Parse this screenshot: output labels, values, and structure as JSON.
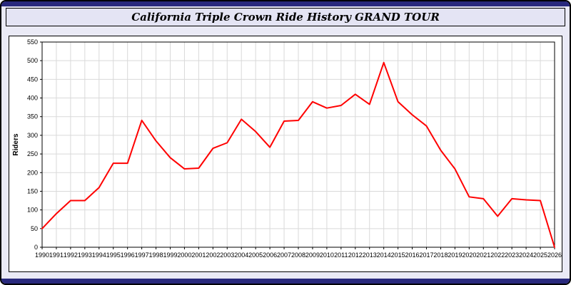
{
  "title": "California Triple Crown Ride History GRAND TOUR",
  "colors": {
    "navy_bar": "#29297d",
    "page_background": "#eaeaf6",
    "title_background": "#e4e4f4",
    "plot_background": "#ffffff",
    "grid": "#d9d9d9",
    "line": "#ff0000"
  },
  "chart_data": {
    "type": "line",
    "title": "California Triple Crown Ride History GRAND TOUR",
    "xlabel": "",
    "ylabel": "Riders",
    "ylim": [
      0,
      550
    ],
    "ytick_step": 50,
    "yticks": [
      0,
      50,
      100,
      150,
      200,
      250,
      300,
      350,
      400,
      450,
      500,
      550
    ],
    "grid": true,
    "legend": "none",
    "line_color": "#ff0000",
    "years": [
      1990,
      1991,
      1992,
      1993,
      1994,
      1995,
      1996,
      1997,
      1998,
      1999,
      2000,
      2001,
      2002,
      2003,
      2004,
      2005,
      2006,
      2007,
      2008,
      2009,
      2010,
      2011,
      2012,
      2013,
      2014,
      2015,
      2016,
      2017,
      2018,
      2019,
      2020,
      2021,
      2022,
      2023,
      2024,
      2025,
      2026
    ],
    "series": [
      {
        "name": "Riders",
        "values": [
          50,
          90,
          125,
          125,
          160,
          225,
          225,
          340,
          285,
          240,
          210,
          212,
          265,
          280,
          343,
          310,
          268,
          338,
          340,
          390,
          373,
          380,
          410,
          383,
          495,
          390,
          355,
          325,
          260,
          210,
          135,
          130,
          83,
          130,
          127,
          125,
          0
        ]
      }
    ]
  }
}
